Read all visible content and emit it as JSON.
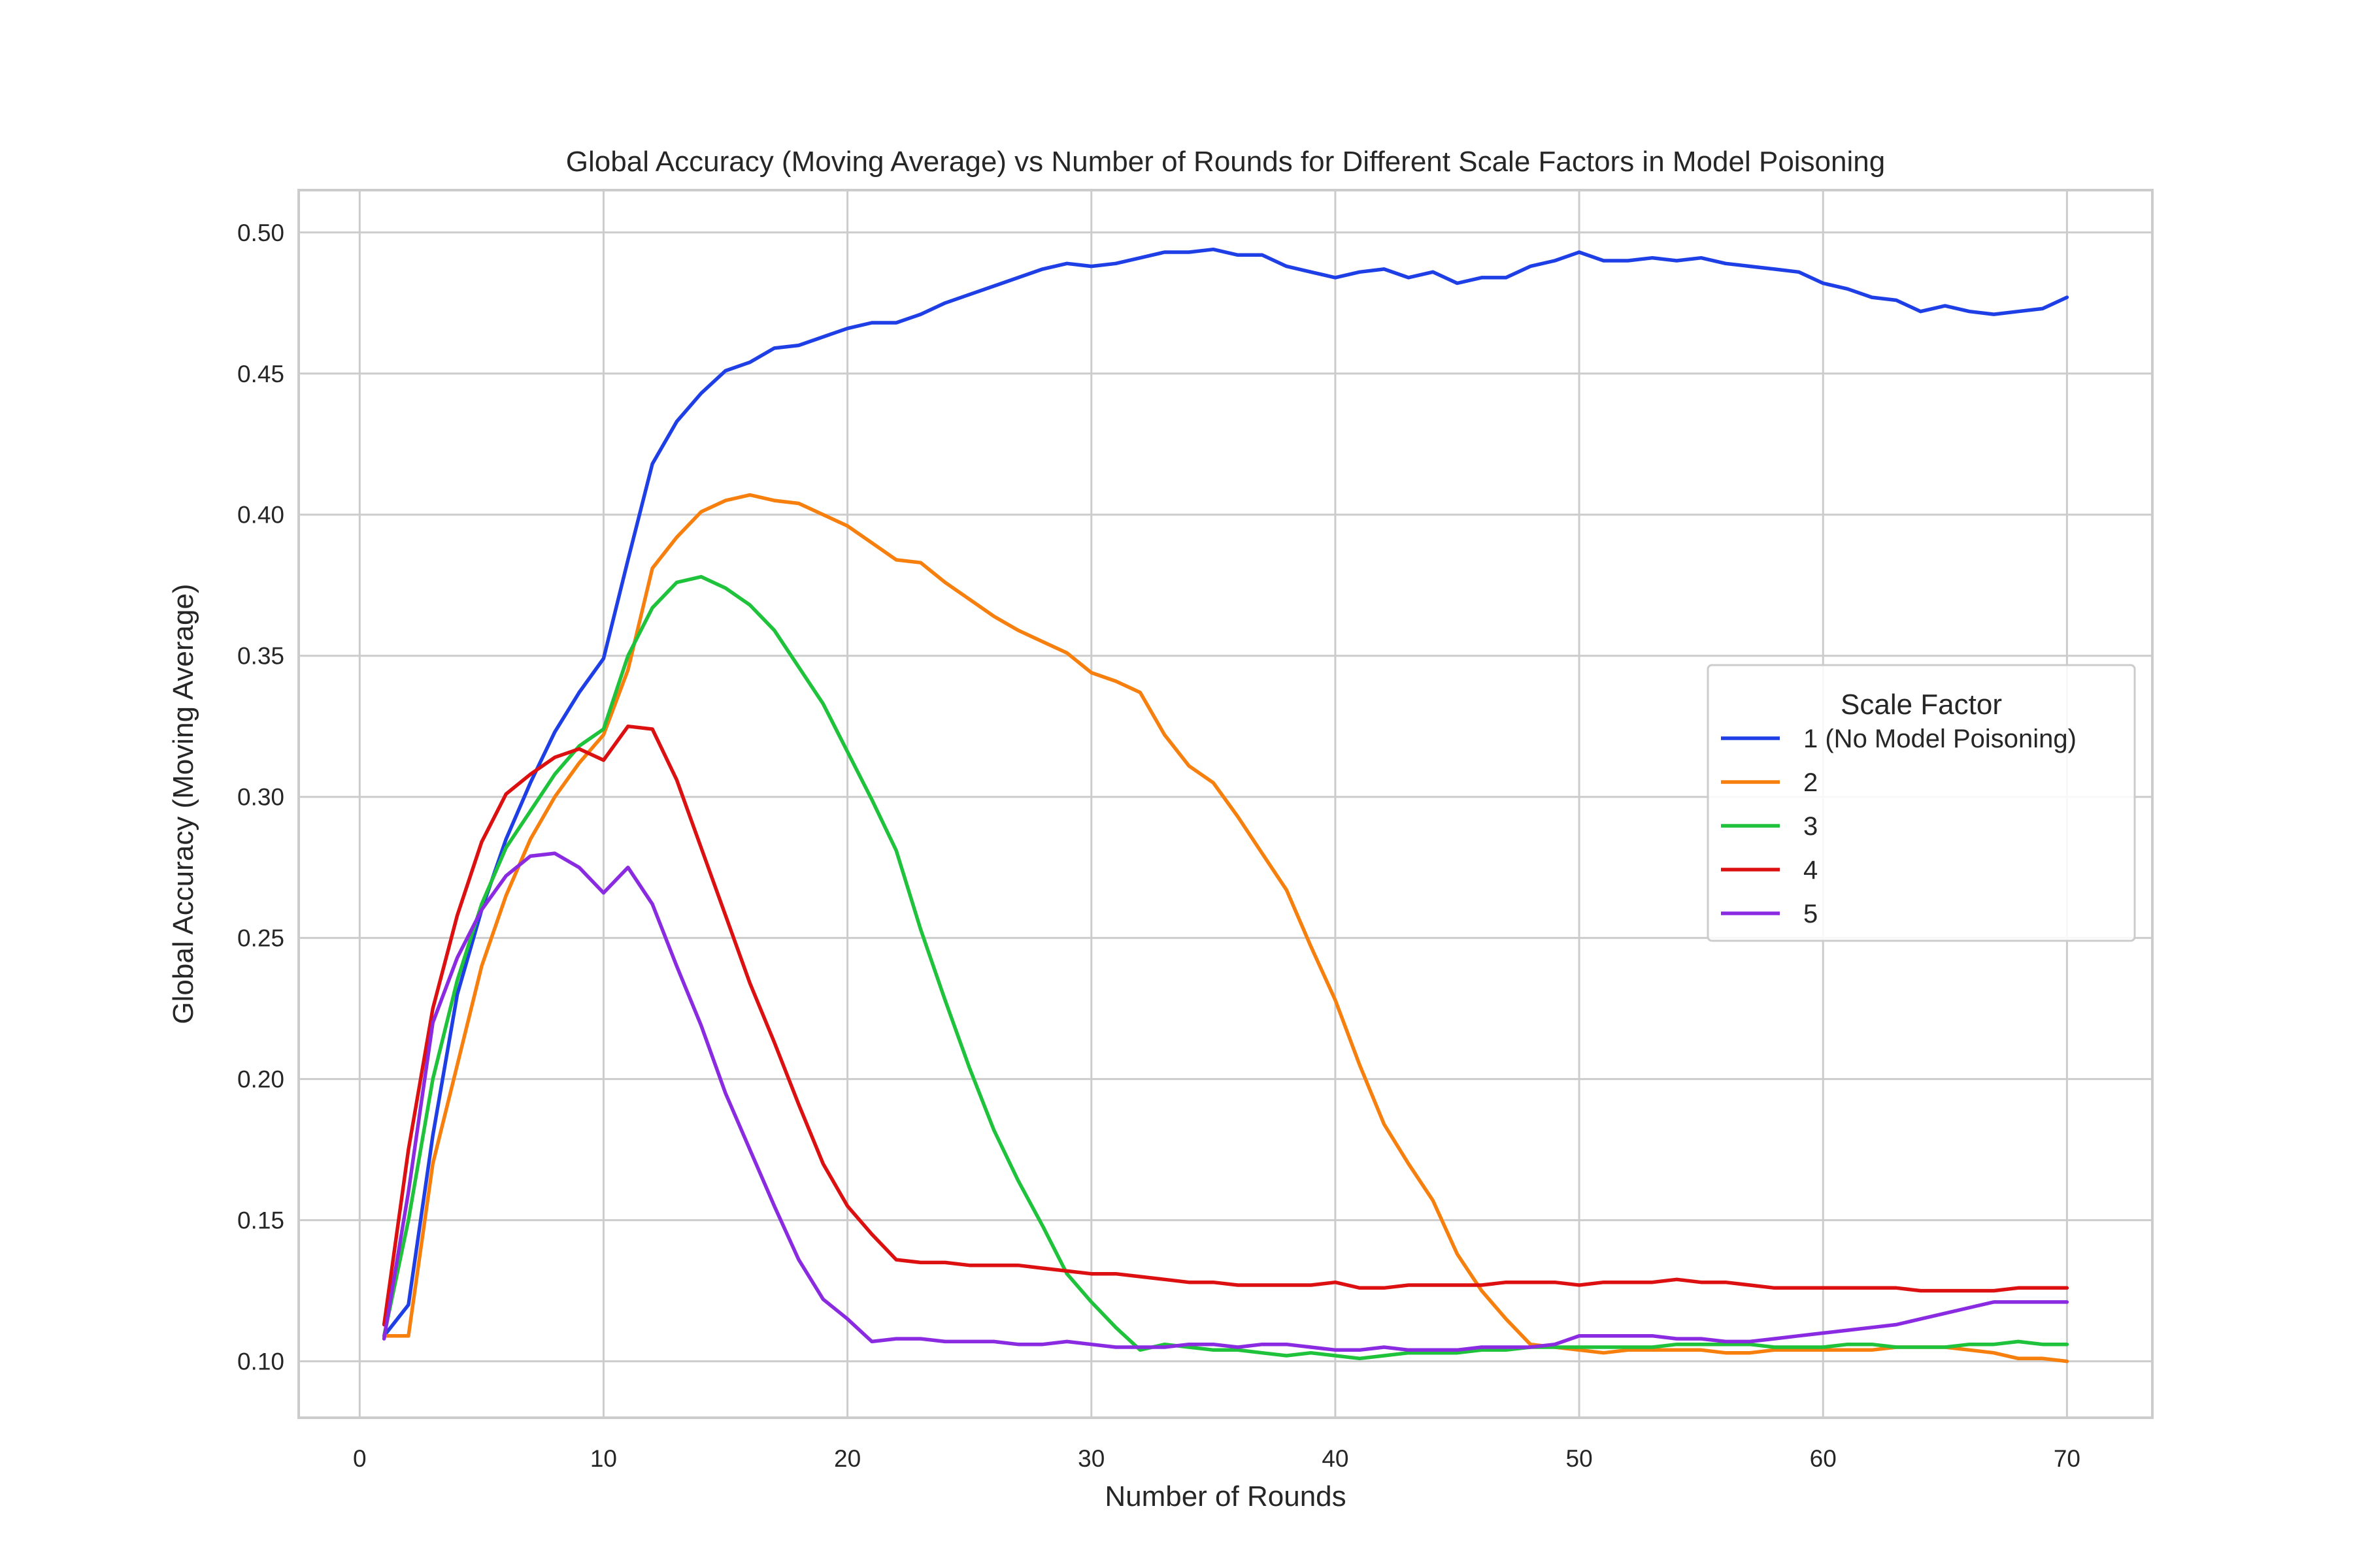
{
  "chart_data": {
    "type": "line",
    "title": "Global Accuracy (Moving Average) vs Number of Rounds for Different Scale Factors in Model Poisoning",
    "xlabel": "Number of Rounds",
    "ylabel": "Global Accuracy (Moving Average)",
    "xlim": [
      -2.5,
      73.5
    ],
    "ylim": [
      0.08,
      0.515
    ],
    "xticks": [
      0,
      10,
      20,
      30,
      40,
      50,
      60,
      70
    ],
    "yticks": [
      0.1,
      0.15,
      0.2,
      0.25,
      0.3,
      0.35,
      0.4,
      0.45,
      0.5
    ],
    "grid": true,
    "legend": {
      "title": "Scale Factor",
      "position": "center-right"
    },
    "colors": [
      "#1f3fe6",
      "#f77f0e",
      "#1fc23b",
      "#dc1010",
      "#8a2be2"
    ],
    "x": [
      1,
      2,
      3,
      4,
      5,
      6,
      7,
      8,
      9,
      10,
      11,
      12,
      13,
      14,
      15,
      16,
      17,
      18,
      19,
      20,
      21,
      22,
      23,
      24,
      25,
      26,
      27,
      28,
      29,
      30,
      31,
      32,
      33,
      34,
      35,
      36,
      37,
      38,
      39,
      40,
      41,
      42,
      43,
      44,
      45,
      46,
      47,
      48,
      49,
      50,
      51,
      52,
      53,
      54,
      55,
      56,
      57,
      58,
      59,
      60,
      61,
      62,
      63,
      64,
      65,
      66,
      67,
      68,
      69,
      70
    ],
    "series": [
      {
        "name": "1 (No Model Poisoning)",
        "values": [
          0.109,
          0.12,
          0.18,
          0.23,
          0.26,
          0.285,
          0.305,
          0.323,
          0.337,
          0.349,
          0.384,
          0.418,
          0.433,
          0.443,
          0.451,
          0.454,
          0.459,
          0.46,
          0.463,
          0.466,
          0.468,
          0.468,
          0.471,
          0.475,
          0.478,
          0.481,
          0.484,
          0.487,
          0.489,
          0.488,
          0.489,
          0.491,
          0.493,
          0.493,
          0.494,
          0.492,
          0.492,
          0.488,
          0.486,
          0.484,
          0.486,
          0.487,
          0.484,
          0.486,
          0.482,
          0.484,
          0.484,
          0.488,
          0.49,
          0.493,
          0.49,
          0.49,
          0.491,
          0.49,
          0.491,
          0.489,
          0.488,
          0.487,
          0.486,
          0.482,
          0.48,
          0.477,
          0.476,
          0.472,
          0.474,
          0.472,
          0.471,
          0.472,
          0.473,
          0.477
        ]
      },
      {
        "name": "2",
        "values": [
          0.109,
          0.109,
          0.17,
          0.205,
          0.24,
          0.265,
          0.285,
          0.3,
          0.312,
          0.322,
          0.345,
          0.381,
          0.392,
          0.401,
          0.405,
          0.407,
          0.405,
          0.404,
          0.4,
          0.396,
          0.39,
          0.384,
          0.383,
          0.376,
          0.37,
          0.364,
          0.359,
          0.355,
          0.351,
          0.344,
          0.341,
          0.337,
          0.322,
          0.311,
          0.305,
          0.293,
          0.28,
          0.267,
          0.247,
          0.228,
          0.205,
          0.184,
          0.17,
          0.157,
          0.138,
          0.125,
          0.115,
          0.106,
          0.105,
          0.104,
          0.103,
          0.104,
          0.104,
          0.104,
          0.104,
          0.103,
          0.103,
          0.104,
          0.104,
          0.104,
          0.104,
          0.104,
          0.105,
          0.105,
          0.105,
          0.104,
          0.103,
          0.101,
          0.101,
          0.1
        ]
      },
      {
        "name": "3",
        "values": [
          0.109,
          0.15,
          0.2,
          0.235,
          0.262,
          0.282,
          0.295,
          0.308,
          0.318,
          0.324,
          0.35,
          0.367,
          0.376,
          0.378,
          0.374,
          0.368,
          0.359,
          0.346,
          0.333,
          0.316,
          0.299,
          0.281,
          0.253,
          0.228,
          0.204,
          0.182,
          0.164,
          0.148,
          0.131,
          0.121,
          0.112,
          0.104,
          0.106,
          0.105,
          0.104,
          0.104,
          0.103,
          0.102,
          0.103,
          0.102,
          0.101,
          0.102,
          0.103,
          0.103,
          0.103,
          0.104,
          0.104,
          0.105,
          0.105,
          0.105,
          0.105,
          0.105,
          0.105,
          0.106,
          0.106,
          0.106,
          0.106,
          0.105,
          0.105,
          0.105,
          0.106,
          0.106,
          0.105,
          0.105,
          0.105,
          0.106,
          0.106,
          0.107,
          0.106,
          0.106
        ]
      },
      {
        "name": "4",
        "values": [
          0.113,
          0.175,
          0.225,
          0.258,
          0.284,
          0.301,
          0.308,
          0.314,
          0.317,
          0.313,
          0.325,
          0.324,
          0.306,
          0.282,
          0.258,
          0.234,
          0.213,
          0.191,
          0.17,
          0.155,
          0.145,
          0.136,
          0.135,
          0.135,
          0.134,
          0.134,
          0.134,
          0.133,
          0.132,
          0.131,
          0.131,
          0.13,
          0.129,
          0.128,
          0.128,
          0.127,
          0.127,
          0.127,
          0.127,
          0.128,
          0.126,
          0.126,
          0.127,
          0.127,
          0.127,
          0.127,
          0.128,
          0.128,
          0.128,
          0.127,
          0.128,
          0.128,
          0.128,
          0.129,
          0.128,
          0.128,
          0.127,
          0.126,
          0.126,
          0.126,
          0.126,
          0.126,
          0.126,
          0.125,
          0.125,
          0.125,
          0.125,
          0.126,
          0.126,
          0.126
        ]
      },
      {
        "name": "5",
        "values": [
          0.108,
          0.16,
          0.22,
          0.243,
          0.26,
          0.272,
          0.279,
          0.28,
          0.275,
          0.266,
          0.275,
          0.262,
          0.24,
          0.219,
          0.195,
          0.175,
          0.155,
          0.136,
          0.122,
          0.115,
          0.107,
          0.108,
          0.108,
          0.107,
          0.107,
          0.107,
          0.106,
          0.106,
          0.107,
          0.106,
          0.105,
          0.105,
          0.105,
          0.106,
          0.106,
          0.105,
          0.106,
          0.106,
          0.105,
          0.104,
          0.104,
          0.105,
          0.104,
          0.104,
          0.104,
          0.105,
          0.105,
          0.105,
          0.106,
          0.109,
          0.109,
          0.109,
          0.109,
          0.108,
          0.108,
          0.107,
          0.107,
          0.108,
          0.109,
          0.11,
          0.111,
          0.112,
          0.113,
          0.115,
          0.117,
          0.119,
          0.121,
          0.121,
          0.121,
          0.121
        ]
      }
    ]
  }
}
